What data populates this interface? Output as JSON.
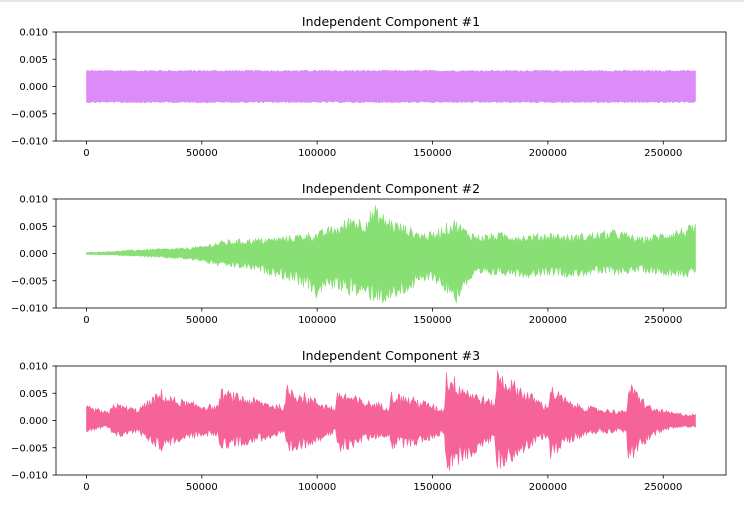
{
  "chart_data": [
    {
      "type": "line",
      "title": "Independent Component #1",
      "color": "#dd8bf8",
      "xlim": [
        -13200,
        277200
      ],
      "ylim": [
        -0.01,
        0.01
      ],
      "xticks": [
        0,
        50000,
        100000,
        150000,
        200000,
        250000
      ],
      "xtick_labels": [
        "0",
        "50000",
        "100000",
        "150000",
        "200000",
        "250000"
      ],
      "yticks": [
        0.01,
        0.005,
        0.0,
        -0.005,
        -0.01
      ],
      "ytick_labels": [
        "0.010",
        "0.005",
        "0.000",
        "−0.005",
        "−0.010"
      ],
      "series": [
        {
          "x": [
            0,
            10000,
            20000,
            30000,
            40000,
            50000,
            60000,
            70000,
            80000,
            90000,
            100000,
            110000,
            120000,
            130000,
            140000,
            150000,
            160000,
            170000,
            180000,
            190000,
            200000,
            210000,
            220000,
            230000,
            240000,
            250000,
            264000
          ],
          "upper": [
            0.003,
            0.003,
            0.003,
            0.003,
            0.003,
            0.003,
            0.003,
            0.003,
            0.003,
            0.003,
            0.003,
            0.003,
            0.003,
            0.003,
            0.003,
            0.003,
            0.003,
            0.003,
            0.003,
            0.003,
            0.003,
            0.003,
            0.003,
            0.003,
            0.003,
            0.003,
            0.003
          ],
          "lower": [
            -0.003,
            -0.003,
            -0.003,
            -0.003,
            -0.003,
            -0.003,
            -0.003,
            -0.003,
            -0.003,
            -0.003,
            -0.003,
            -0.003,
            -0.003,
            -0.003,
            -0.003,
            -0.003,
            -0.003,
            -0.003,
            -0.003,
            -0.003,
            -0.003,
            -0.003,
            -0.003,
            -0.003,
            -0.003,
            -0.003,
            -0.003
          ]
        }
      ]
    },
    {
      "type": "line",
      "title": "Independent Component #2",
      "color": "#88e075",
      "xlim": [
        -13200,
        277200
      ],
      "ylim": [
        -0.01,
        0.01
      ],
      "xticks": [
        0,
        50000,
        100000,
        150000,
        200000,
        250000
      ],
      "xtick_labels": [
        "0",
        "50000",
        "100000",
        "150000",
        "200000",
        "250000"
      ],
      "yticks": [
        0.01,
        0.005,
        0.0,
        -0.005,
        -0.01
      ],
      "ytick_labels": [
        "0.010",
        "0.005",
        "0.000",
        "−0.005",
        "−0.010"
      ],
      "series": [
        {
          "x": [
            0,
            10000,
            20000,
            30000,
            40000,
            50000,
            55000,
            60000,
            70000,
            80000,
            90000,
            95000,
            100000,
            105000,
            110000,
            115000,
            120000,
            125000,
            130000,
            135000,
            140000,
            145000,
            150000,
            155000,
            160000,
            165000,
            170000,
            180000,
            190000,
            200000,
            210000,
            220000,
            230000,
            240000,
            250000,
            264000
          ],
          "upper": [
            0.0002,
            0.0004,
            0.0007,
            0.0009,
            0.001,
            0.0014,
            0.002,
            0.0025,
            0.0028,
            0.003,
            0.0035,
            0.004,
            0.004,
            0.005,
            0.0055,
            0.0075,
            0.0065,
            0.009,
            0.007,
            0.006,
            0.005,
            0.004,
            0.004,
            0.0055,
            0.0065,
            0.0045,
            0.0035,
            0.004,
            0.0035,
            0.004,
            0.0035,
            0.004,
            0.0045,
            0.003,
            0.004,
            0.0055
          ],
          "lower": [
            -0.0002,
            -0.0003,
            -0.0005,
            -0.0008,
            -0.001,
            -0.0015,
            -0.0022,
            -0.0025,
            -0.003,
            -0.004,
            -0.0055,
            -0.0065,
            -0.0085,
            -0.0065,
            -0.007,
            -0.008,
            -0.0085,
            -0.009,
            -0.0095,
            -0.0085,
            -0.007,
            -0.006,
            -0.005,
            -0.007,
            -0.0095,
            -0.006,
            -0.0045,
            -0.004,
            -0.0045,
            -0.004,
            -0.0045,
            -0.004,
            -0.004,
            -0.0035,
            -0.004,
            -0.0045
          ]
        }
      ]
    },
    {
      "type": "line",
      "title": "Independent Component #3",
      "color": "#f56399",
      "xlim": [
        -13200,
        277200
      ],
      "ylim": [
        -0.01,
        0.01
      ],
      "xticks": [
        0,
        50000,
        100000,
        150000,
        200000,
        250000
      ],
      "xtick_labels": [
        "0",
        "50000",
        "100000",
        "150000",
        "200000",
        "250000"
      ],
      "yticks": [
        0.01,
        0.005,
        0.0,
        -0.005,
        -0.01
      ],
      "ytick_labels": [
        "0.010",
        "0.005",
        "0.000",
        "−0.005",
        "−0.010"
      ],
      "series": [
        {
          "x": [
            0,
            8000,
            10000,
            11000,
            20000,
            22000,
            33000,
            34000,
            45000,
            57000,
            58000,
            70000,
            86000,
            87000,
            100000,
            108000,
            109000,
            120000,
            131000,
            132000,
            145000,
            155000,
            156000,
            168000,
            177000,
            178000,
            190000,
            200000,
            201000,
            210000,
            220000,
            234000,
            235000,
            245000,
            255000,
            264000
          ],
          "upper": [
            0.0028,
            0.0018,
            0.0015,
            0.0035,
            0.0025,
            0.0022,
            0.006,
            0.005,
            0.0035,
            0.0028,
            0.006,
            0.0045,
            0.0028,
            0.0068,
            0.004,
            0.0025,
            0.006,
            0.004,
            0.003,
            0.0055,
            0.004,
            0.0022,
            0.0095,
            0.0055,
            0.0035,
            0.0098,
            0.006,
            0.0028,
            0.0068,
            0.0035,
            0.0025,
            0.0018,
            0.0072,
            0.0025,
            0.0015,
            0.0012
          ],
          "lower": [
            -0.0022,
            -0.0015,
            -0.0015,
            -0.0035,
            -0.0025,
            -0.0022,
            -0.006,
            -0.005,
            -0.0035,
            -0.0028,
            -0.0055,
            -0.0045,
            -0.0028,
            -0.007,
            -0.004,
            -0.0025,
            -0.0065,
            -0.004,
            -0.003,
            -0.0055,
            -0.0045,
            -0.0025,
            -0.0098,
            -0.0065,
            -0.0035,
            -0.0095,
            -0.006,
            -0.003,
            -0.0072,
            -0.004,
            -0.0025,
            -0.0022,
            -0.0085,
            -0.003,
            -0.0015,
            -0.0012
          ]
        }
      ]
    }
  ]
}
